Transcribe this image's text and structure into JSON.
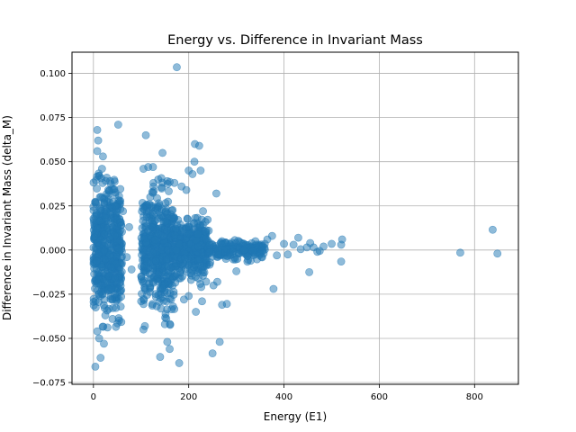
{
  "chart_data": {
    "type": "scatter",
    "title": "Energy vs. Difference in Invariant Mass",
    "xlabel": "Energy (E1)",
    "ylabel": "Difference in Invariant Mass (delta_M)",
    "xlim": [
      -45,
      892
    ],
    "ylim": [
      -0.076,
      0.112
    ],
    "xticks": [
      0,
      200,
      400,
      600,
      800
    ],
    "xtick_labels": [
      "0",
      "200",
      "400",
      "600",
      "800"
    ],
    "yticks": [
      -0.075,
      -0.05,
      -0.025,
      0.0,
      0.025,
      0.05,
      0.075,
      0.1
    ],
    "ytick_labels": [
      "−0.075",
      "−0.050",
      "−0.025",
      "0.000",
      "0.025",
      "0.050",
      "0.075",
      "0.100"
    ],
    "grid": true,
    "marker_color": "#1f77b4",
    "marker_alpha": 0.5,
    "clusters": [
      {
        "x": [
          0,
          60
        ],
        "y_sd": 0.018,
        "count": 520
      },
      {
        "x": [
          100,
          170
        ],
        "y_sd": 0.016,
        "count": 480
      },
      {
        "x": [
          170,
          240
        ],
        "y_sd": 0.008,
        "count": 320
      },
      {
        "x": [
          240,
          360
        ],
        "y_sd": 0.0025,
        "count": 180
      }
    ],
    "points": [
      {
        "x": 175,
        "y": 0.1035
      },
      {
        "x": 8,
        "y": 0.068
      },
      {
        "x": 52,
        "y": 0.071
      },
      {
        "x": 110,
        "y": 0.065
      },
      {
        "x": 10,
        "y": 0.062
      },
      {
        "x": 213,
        "y": 0.06
      },
      {
        "x": 222,
        "y": 0.059
      },
      {
        "x": 145,
        "y": 0.055
      },
      {
        "x": 8,
        "y": 0.056
      },
      {
        "x": 20,
        "y": 0.053
      },
      {
        "x": 212,
        "y": 0.05
      },
      {
        "x": 200,
        "y": 0.045
      },
      {
        "x": 225,
        "y": 0.045
      },
      {
        "x": 208,
        "y": 0.043
      },
      {
        "x": 155,
        "y": 0.039
      },
      {
        "x": 170,
        "y": 0.038
      },
      {
        "x": 185,
        "y": 0.036
      },
      {
        "x": 195,
        "y": 0.034
      },
      {
        "x": 258,
        "y": 0.032
      },
      {
        "x": 230,
        "y": 0.022
      },
      {
        "x": 235,
        "y": 0.016
      },
      {
        "x": 242,
        "y": 0.011
      },
      {
        "x": 310,
        "y": 0.004
      },
      {
        "x": 400,
        "y": 0.0035
      },
      {
        "x": 385,
        "y": -0.003
      },
      {
        "x": 408,
        "y": -0.0025
      },
      {
        "x": 420,
        "y": 0.003
      },
      {
        "x": 435,
        "y": 0.0005
      },
      {
        "x": 448,
        "y": 0.0015
      },
      {
        "x": 455,
        "y": 0.004
      },
      {
        "x": 462,
        "y": 0.0015
      },
      {
        "x": 470,
        "y": -0.001
      },
      {
        "x": 475,
        "y": -0.0005
      },
      {
        "x": 483,
        "y": 0.002
      },
      {
        "x": 500,
        "y": 0.0035
      },
      {
        "x": 520,
        "y": 0.003
      },
      {
        "x": 522,
        "y": 0.006
      },
      {
        "x": 520,
        "y": -0.0065
      },
      {
        "x": 453,
        "y": -0.0125
      },
      {
        "x": 430,
        "y": 0.007
      },
      {
        "x": 375,
        "y": 0.008
      },
      {
        "x": 365,
        "y": 0.006
      },
      {
        "x": 378,
        "y": -0.022
      },
      {
        "x": 350,
        "y": -0.002
      },
      {
        "x": 340,
        "y": 0.005
      },
      {
        "x": 330,
        "y": -0.006
      },
      {
        "x": 320,
        "y": 0.003
      },
      {
        "x": 770,
        "y": -0.0015
      },
      {
        "x": 838,
        "y": 0.0115
      },
      {
        "x": 848,
        "y": -0.002
      },
      {
        "x": 4,
        "y": -0.066
      },
      {
        "x": 15,
        "y": -0.061
      },
      {
        "x": 180,
        "y": -0.064
      },
      {
        "x": 140,
        "y": -0.0605
      },
      {
        "x": 250,
        "y": -0.0585
      },
      {
        "x": 265,
        "y": -0.052
      },
      {
        "x": 155,
        "y": -0.052
      },
      {
        "x": 160,
        "y": -0.056
      },
      {
        "x": 22,
        "y": -0.053
      },
      {
        "x": 12,
        "y": -0.05
      },
      {
        "x": 8,
        "y": -0.046
      },
      {
        "x": 105,
        "y": -0.045
      },
      {
        "x": 108,
        "y": -0.043
      },
      {
        "x": 150,
        "y": -0.042
      },
      {
        "x": 40,
        "y": -0.039
      },
      {
        "x": 25,
        "y": -0.037
      },
      {
        "x": 215,
        "y": -0.035
      },
      {
        "x": 270,
        "y": -0.031
      },
      {
        "x": 280,
        "y": -0.0305
      },
      {
        "x": 228,
        "y": -0.029
      },
      {
        "x": 200,
        "y": -0.026
      },
      {
        "x": 190,
        "y": -0.028
      },
      {
        "x": 252,
        "y": -0.02
      },
      {
        "x": 260,
        "y": -0.018
      },
      {
        "x": 300,
        "y": -0.012
      },
      {
        "x": 12,
        "y": 0.042
      },
      {
        "x": 18,
        "y": 0.046
      },
      {
        "x": 28,
        "y": 0.041
      },
      {
        "x": 35,
        "y": 0.039
      },
      {
        "x": 105,
        "y": 0.046
      },
      {
        "x": 115,
        "y": 0.047
      },
      {
        "x": 125,
        "y": 0.047
      },
      {
        "x": 62,
        "y": 0.022
      },
      {
        "x": 75,
        "y": 0.013
      },
      {
        "x": 80,
        "y": -0.011
      },
      {
        "x": 70,
        "y": -0.004
      }
    ]
  }
}
